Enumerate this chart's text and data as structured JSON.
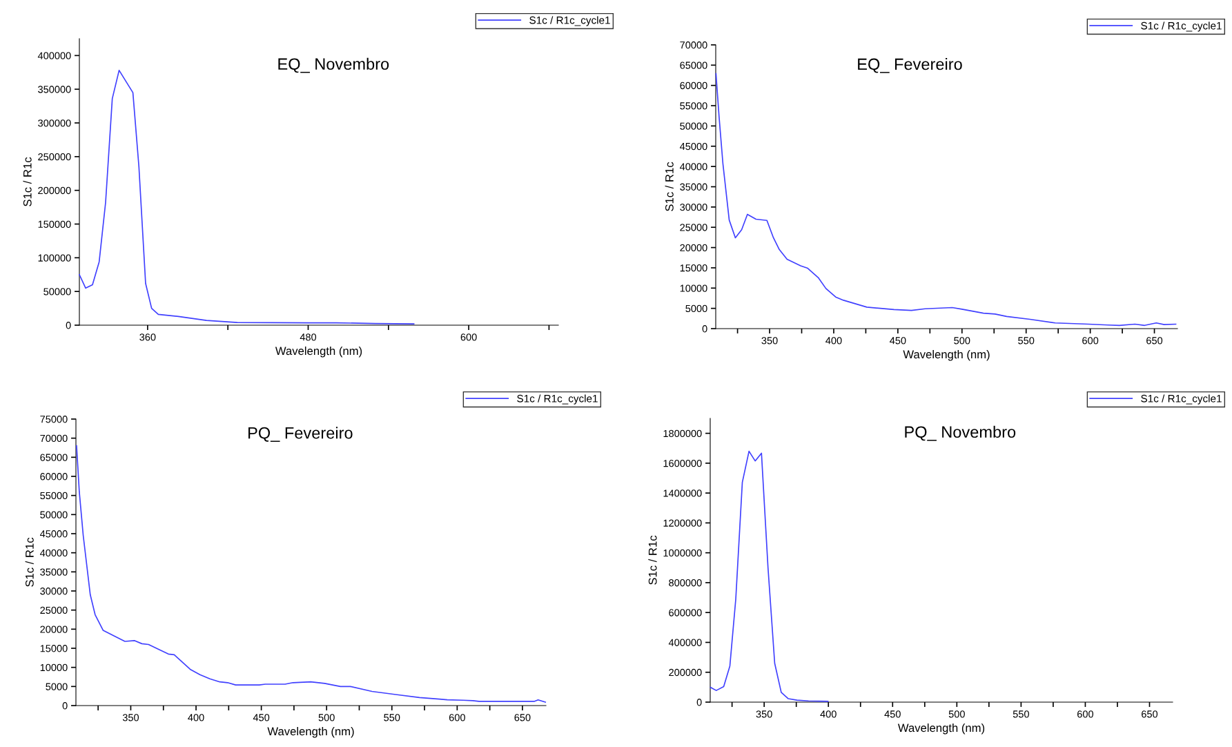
{
  "chart_data": [
    {
      "type": "line",
      "title": "EQ_ Novembro",
      "xlabel": "Wavelength (nm)",
      "ylabel": "S1c / R1c",
      "legend": "top right",
      "grid": false,
      "xlim": [
        309,
        667
      ],
      "xticks": [
        360,
        {
          "value": 420,
          "label": null
        },
        480,
        {
          "value": 540,
          "label": null
        },
        600,
        {
          "value": 660,
          "label": null
        }
      ],
      "ylim": [
        0,
        425000
      ],
      "yticks": [
        0,
        50000,
        100000,
        150000,
        200000,
        250000,
        300000,
        350000,
        400000
      ],
      "series": [
        {
          "name": "S1c / R1c_cycle1",
          "color": "#4040ff",
          "x": [
            309,
            313.7,
            318.8,
            323.8,
            328.6,
            333.6,
            338.7,
            349,
            353.5,
            358.5,
            363,
            368,
            383,
            404,
            427,
            480,
            501,
            530,
            559
          ],
          "values": [
            75000,
            55000,
            60000,
            94000,
            182000,
            336000,
            378000,
            345000,
            235000,
            62000,
            25000,
            16000,
            13000,
            7000,
            4000,
            3500,
            3500,
            2500,
            2000
          ]
        }
      ]
    },
    {
      "type": "line",
      "title": "EQ_ Fevereiro",
      "xlabel": "Wavelength (nm)",
      "ylabel": "S1c / R1c",
      "legend": "top right",
      "grid": false,
      "xlim": [
        308,
        668
      ],
      "xticks": [
        {
          "value": 325,
          "label": null
        },
        350,
        {
          "value": 375,
          "label": null
        },
        400,
        {
          "value": 425,
          "label": null
        },
        450,
        {
          "value": 475,
          "label": null
        },
        500,
        {
          "value": 525,
          "label": null
        },
        550,
        {
          "value": 575,
          "label": null
        },
        600,
        {
          "value": 625,
          "label": null
        },
        650
      ],
      "ylim": [
        0,
        70000
      ],
      "yticks": [
        0,
        5000,
        10000,
        15000,
        20000,
        25000,
        30000,
        35000,
        40000,
        45000,
        50000,
        55000,
        60000,
        65000,
        70000
      ],
      "series": [
        {
          "name": "S1c / R1c_cycle1",
          "color": "#4040ff",
          "x": [
            308.2,
            310.6,
            313.6,
            318.5,
            323.3,
            328.2,
            332.7,
            339.4,
            347.9,
            353,
            357.6,
            363.6,
            374.2,
            379.7,
            387.9,
            393.9,
            401.5,
            407.6,
            425.8,
            447,
            460.6,
            471.2,
            492.4,
            500,
            516.7,
            525.8,
            534.8,
            553,
            572.7,
            598.5,
            613.6,
            622.7,
            634.8,
            642.4,
            651.5,
            657.6,
            666.7
          ],
          "values": [
            62900,
            52300,
            40700,
            26800,
            22400,
            24400,
            28200,
            27000,
            26700,
            22400,
            19500,
            17100,
            15500,
            14900,
            12600,
            9900,
            7800,
            7000,
            5300,
            4700,
            4500,
            4900,
            5200,
            4800,
            3800,
            3600,
            3000,
            2300,
            1400,
            1100,
            900,
            800,
            1100,
            800,
            1400,
            1000,
            1100
          ]
        }
      ]
    },
    {
      "type": "line",
      "title": "PQ_ Fevereiro",
      "xlabel": "Wavelength (nm)",
      "ylabel": "S1c / R1c",
      "legend": "top right",
      "grid": false,
      "xlim": [
        308,
        668
      ],
      "xticks": [
        {
          "value": 325,
          "label": null
        },
        350,
        {
          "value": 375,
          "label": null
        },
        400,
        {
          "value": 425,
          "label": null
        },
        450,
        {
          "value": 475,
          "label": null
        },
        500,
        {
          "value": 525,
          "label": null
        },
        550,
        {
          "value": 575,
          "label": null
        },
        600,
        {
          "value": 625,
          "label": null
        },
        650
      ],
      "ylim": [
        0,
        75000
      ],
      "yticks": [
        0,
        5000,
        10000,
        15000,
        20000,
        25000,
        30000,
        35000,
        40000,
        45000,
        50000,
        55000,
        60000,
        65000,
        70000,
        75000
      ],
      "series": [
        {
          "name": "S1c / R1c_cycle1",
          "color": "#4040ff",
          "x": [
            308.5,
            310.6,
            313.6,
            319,
            322.7,
            328.8,
            337.9,
            345.5,
            353,
            358.5,
            363.6,
            372.7,
            378.8,
            383.3,
            389.4,
            395.5,
            403,
            410.6,
            418.2,
            424.2,
            430.3,
            448.5,
            453,
            468.2,
            474.2,
            487.9,
            498.5,
            510.6,
            518.2,
            534.8,
            553,
            571.2,
            586.4,
            592.4,
            604.5,
            612,
            616.7,
            650,
            659,
            662,
            667.6
          ],
          "values": [
            68000,
            55900,
            44500,
            29000,
            23800,
            19700,
            18100,
            16800,
            17000,
            16200,
            16000,
            14500,
            13500,
            13300,
            11400,
            9500,
            8100,
            7000,
            6200,
            6000,
            5400,
            5400,
            5600,
            5600,
            6000,
            6200,
            5800,
            5000,
            5000,
            3700,
            2900,
            2100,
            1700,
            1500,
            1400,
            1300,
            1100,
            1100,
            1100,
            1500,
            900
          ]
        }
      ]
    },
    {
      "type": "line",
      "title": "PQ_ Novembro",
      "xlabel": "Wavelength (nm)",
      "ylabel": "S1c / R1c",
      "legend": "top right",
      "grid": false,
      "xlim": [
        308,
        668
      ],
      "xticks": [
        {
          "value": 325,
          "label": null
        },
        350,
        {
          "value": 375,
          "label": null
        },
        400,
        {
          "value": 425,
          "label": null
        },
        450,
        {
          "value": 475,
          "label": null
        },
        500,
        {
          "value": 525,
          "label": null
        },
        550,
        {
          "value": 575,
          "label": null
        },
        600,
        {
          "value": 625,
          "label": null
        },
        650
      ],
      "ylim": [
        0,
        1900000
      ],
      "yticks": [
        0,
        200000,
        400000,
        600000,
        800000,
        1000000,
        1200000,
        1400000,
        1600000,
        1800000
      ],
      "series": [
        {
          "name": "S1c / R1c_cycle1",
          "color": "#4040ff",
          "x": [
            308.2,
            312.7,
            318.5,
            323.3,
            327.9,
            333,
            338.2,
            343,
            347.9,
            353,
            358.2,
            363.3,
            368.8,
            375.5,
            384.5,
            399.7
          ],
          "values": [
            99000,
            78000,
            104000,
            242000,
            690000,
            1472000,
            1680000,
            1615000,
            1667000,
            899000,
            260000,
            65000,
            23000,
            13000,
            8000,
            5000
          ]
        }
      ]
    }
  ]
}
